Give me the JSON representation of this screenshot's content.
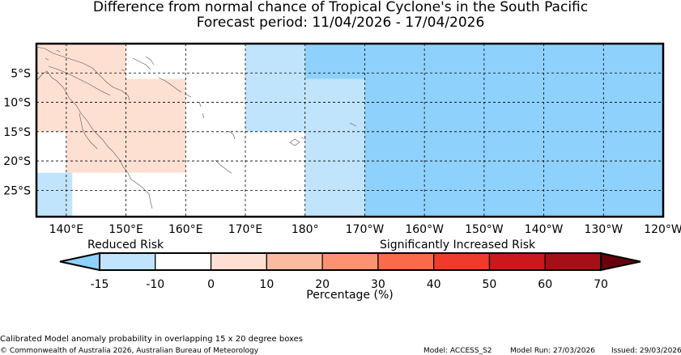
{
  "title": "Difference from normal chance of Tropical Cyclone's in the South Pacific",
  "subtitle": "Forecast period: 11/04/2026 - 17/04/2026",
  "map": {
    "lon_range": [
      135,
      240
    ],
    "lat_range": [
      -29.5,
      0
    ],
    "lon_ticks": [
      {
        "value": 140,
        "label": "140°E"
      },
      {
        "value": 150,
        "label": "150°E"
      },
      {
        "value": 160,
        "label": "160°E"
      },
      {
        "value": 170,
        "label": "170°E"
      },
      {
        "value": 180,
        "label": "180°"
      },
      {
        "value": 190,
        "label": "170°W"
      },
      {
        "value": 200,
        "label": "160°W"
      },
      {
        "value": 210,
        "label": "150°W"
      },
      {
        "value": 220,
        "label": "140°W"
      },
      {
        "value": 230,
        "label": "130°W"
      },
      {
        "value": 240,
        "label": "120°W"
      }
    ],
    "lat_ticks": [
      {
        "value": -5,
        "label": "5°S"
      },
      {
        "value": -10,
        "label": "10°S"
      },
      {
        "value": -15,
        "label": "15°S"
      },
      {
        "value": -20,
        "label": "20°S"
      },
      {
        "value": -25,
        "label": "25°S"
      }
    ],
    "grid": true,
    "cells": [
      {
        "lon": [
          135,
          150
        ],
        "lat": [
          -15,
          0
        ],
        "value": 5,
        "color": "#fee0d2"
      },
      {
        "lon": [
          140,
          160
        ],
        "lat": [
          -22,
          -6
        ],
        "value": 5,
        "color": "#fee0d2"
      },
      {
        "lon": [
          135,
          141
        ],
        "lat": [
          -29.5,
          -22
        ],
        "value": -12,
        "color": "#c0e4fb"
      },
      {
        "lon": [
          170,
          180
        ],
        "lat": [
          -15,
          0
        ],
        "value": -12,
        "color": "#c0e4fb"
      },
      {
        "lon": [
          180,
          190
        ],
        "lat": [
          -29.5,
          -6
        ],
        "value": -12,
        "color": "#c0e4fb"
      },
      {
        "lon": [
          180,
          190
        ],
        "lat": [
          -6,
          0
        ],
        "value": -20,
        "color": "#8ed1fc"
      },
      {
        "lon": [
          190,
          240
        ],
        "lat": [
          -29.5,
          0
        ],
        "value": -20,
        "color": "#8ed1fc"
      }
    ]
  },
  "colorbar": {
    "label": "Percentage (%)",
    "left_caption": "Reduced Risk",
    "right_caption": "Significantly Increased Risk",
    "under_color": "#8ed1fc",
    "over_color": "#67000d",
    "bins": [
      {
        "from": -15,
        "to": -10,
        "color": "#c0e4fb"
      },
      {
        "from": -10,
        "to": 0,
        "color": "#ffffff"
      },
      {
        "from": 0,
        "to": 10,
        "color": "#fee0d2"
      },
      {
        "from": 10,
        "to": 20,
        "color": "#fcbba1"
      },
      {
        "from": 20,
        "to": 30,
        "color": "#fc9272"
      },
      {
        "from": 30,
        "to": 40,
        "color": "#fb6a4a"
      },
      {
        "from": 40,
        "to": 50,
        "color": "#ef3b2c"
      },
      {
        "from": 50,
        "to": 60,
        "color": "#cb181d"
      },
      {
        "from": 60,
        "to": 70,
        "color": "#a50f15"
      }
    ],
    "tick_labels": [
      "-15",
      "-10",
      "0",
      "10",
      "20",
      "30",
      "40",
      "50",
      "60",
      "70"
    ]
  },
  "footer": {
    "note": "Calibrated Model anomaly probability in overlapping 15 x 20 degree boxes",
    "copyright": "© Commonwealth of Australia 2026, Australian Bureau of Meteorology",
    "model": "Model: ACCESS_S2",
    "model_run": "Model Run: 27/03/2026",
    "issued": "Issued: 29/03/2026"
  }
}
